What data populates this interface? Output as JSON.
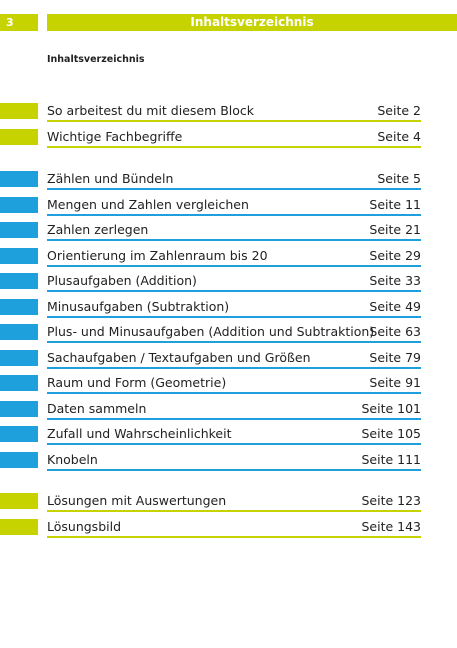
{
  "header": {
    "page": "3",
    "title": "Inhaltsverzeichnis"
  },
  "subtitle": "Inhaltsverzeichnis",
  "sections": [
    {
      "color": "#c6d300",
      "entries": [
        {
          "title": "So arbeitest du mit diesem Block",
          "page": "Seite 2"
        },
        {
          "title": "Wichtige Fachbegriffe",
          "page": "Seite 4"
        }
      ]
    },
    {
      "color": "#1ea0dc",
      "entries": [
        {
          "title": "Zählen und Bündeln",
          "page": "Seite 5"
        },
        {
          "title": "Mengen und Zahlen vergleichen",
          "page": "Seite 11"
        },
        {
          "title": "Zahlen zerlegen",
          "page": "Seite 21"
        },
        {
          "title": "Orientierung im Zahlenraum bis 20",
          "page": "Seite 29"
        },
        {
          "title": "Plusaufgaben (Addition)",
          "page": "Seite 33"
        },
        {
          "title": "Minusaufgaben (Subtraktion)",
          "page": "Seite 49"
        },
        {
          "title": "Plus- und Minusaufgaben (Addition und Subtraktion)",
          "page": "Seite 63"
        },
        {
          "title": "Sachaufgaben / Textaufgaben und Größen",
          "page": "Seite 79"
        },
        {
          "title": "Raum und Form (Geometrie)",
          "page": "Seite 91"
        },
        {
          "title": "Daten sammeln",
          "page": "Seite 101"
        },
        {
          "title": "Zufall und Wahrscheinlichkeit",
          "page": "Seite 105"
        },
        {
          "title": "Knobeln",
          "page": "Seite 111"
        }
      ]
    },
    {
      "color": "#c6d300",
      "entries": [
        {
          "title": "Lösungen mit Auswertungen",
          "page": "Seite 123"
        },
        {
          "title": "Lösungsbild",
          "page": "Seite 143"
        }
      ]
    }
  ]
}
